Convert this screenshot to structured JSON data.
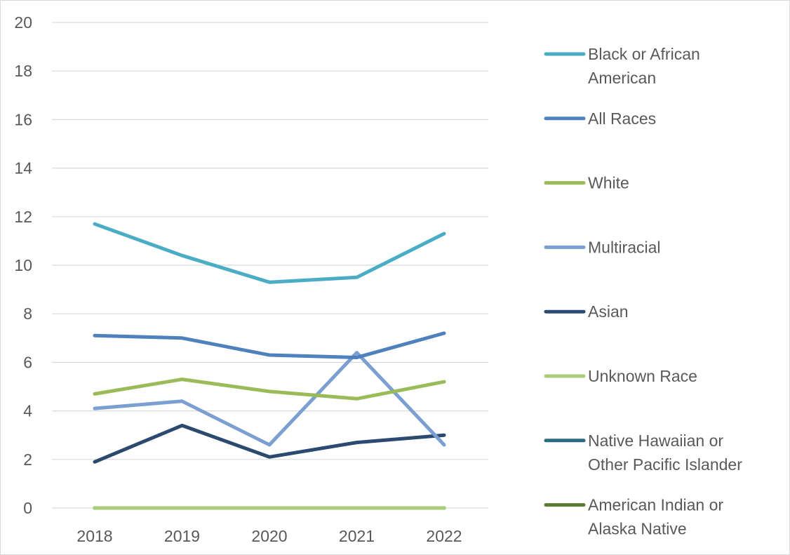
{
  "chart_data": {
    "type": "line",
    "title": "",
    "xlabel": "",
    "ylabel": "",
    "x": [
      "2018",
      "2019",
      "2020",
      "2021",
      "2022"
    ],
    "ylim": [
      0,
      20
    ],
    "yticks": [
      "0",
      "2",
      "4",
      "6",
      "8",
      "10",
      "12",
      "14",
      "16",
      "18",
      "20"
    ],
    "grid": true,
    "legend_position": "right",
    "series": [
      {
        "name": "Black or African American",
        "legend_lines": [
          "Black or African",
          "American"
        ],
        "color": "#4bacc6",
        "values": [
          11.7,
          10.4,
          9.3,
          9.5,
          11.3
        ]
      },
      {
        "name": "All Races",
        "legend_lines": [
          "All Races"
        ],
        "color": "#4f81bd",
        "values": [
          7.1,
          7.0,
          6.3,
          6.2,
          7.2
        ]
      },
      {
        "name": "White",
        "legend_lines": [
          "White"
        ],
        "color": "#9bbb59",
        "values": [
          4.7,
          5.3,
          4.8,
          4.5,
          5.2
        ]
      },
      {
        "name": "Multiracial",
        "legend_lines": [
          "Multiracial"
        ],
        "color": "#7a9fd0",
        "values": [
          4.1,
          4.4,
          2.6,
          6.4,
          2.6
        ]
      },
      {
        "name": "Asian",
        "legend_lines": [
          "Asian"
        ],
        "color": "#2c4a70",
        "values": [
          1.9,
          3.4,
          2.1,
          2.7,
          3.0
        ]
      },
      {
        "name": "Unknown Race",
        "legend_lines": [
          "Unknown Race"
        ],
        "color": "#a9cd7a",
        "values": [
          0,
          0,
          0,
          0,
          0
        ]
      },
      {
        "name": "Native Hawaiian or Other Pacific Islander",
        "legend_lines": [
          "Native Hawaiian or",
          "Other Pacific Islander"
        ],
        "color": "#2a6c80",
        "values": [
          0,
          0,
          0,
          0,
          0
        ]
      },
      {
        "name": "American Indian or Alaska Native",
        "legend_lines": [
          "American Indian or",
          "Alaska Native"
        ],
        "color": "#5e7b34",
        "values": [
          0,
          0,
          0,
          0,
          0
        ]
      }
    ]
  }
}
